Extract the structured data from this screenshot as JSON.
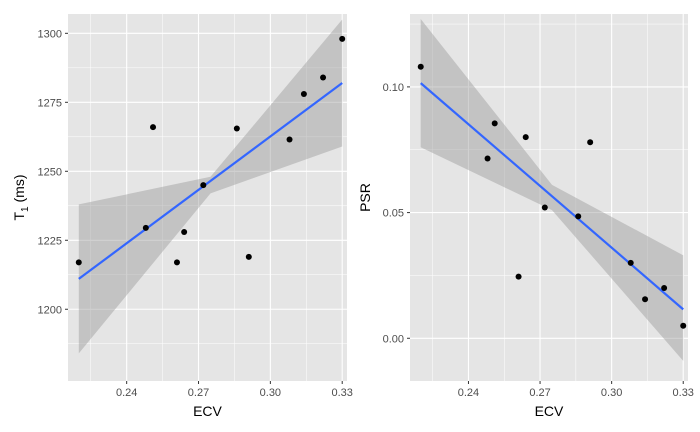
{
  "chart_data": [
    {
      "type": "scatter",
      "xlabel": "ECV",
      "ylabel": {
        "main": "T",
        "sub": "1",
        "tail": " (ms)"
      },
      "xlim": [
        0.2155,
        0.332
      ],
      "ylim": [
        1174,
        1307
      ],
      "x_ticks": [
        0.24,
        0.27,
        0.3,
        0.33
      ],
      "x_tick_labels": [
        "0.24",
        "0.27",
        "0.30",
        "0.33"
      ],
      "y_ticks": [
        1200,
        1225,
        1250,
        1275,
        1300
      ],
      "y_tick_labels": [
        "1200",
        "1225",
        "1250",
        "1275",
        "1300"
      ],
      "grid": true,
      "points": [
        {
          "x": 0.22,
          "y": 1217
        },
        {
          "x": 0.248,
          "y": 1229.5
        },
        {
          "x": 0.251,
          "y": 1266
        },
        {
          "x": 0.261,
          "y": 1217
        },
        {
          "x": 0.264,
          "y": 1228
        },
        {
          "x": 0.272,
          "y": 1245
        },
        {
          "x": 0.286,
          "y": 1265.5
        },
        {
          "x": 0.291,
          "y": 1219
        },
        {
          "x": 0.308,
          "y": 1261.5
        },
        {
          "x": 0.314,
          "y": 1278
        },
        {
          "x": 0.322,
          "y": 1284
        },
        {
          "x": 0.33,
          "y": 1298
        }
      ],
      "trend": {
        "x": [
          0.22,
          0.33
        ],
        "y": [
          1211,
          1282
        ]
      },
      "band": {
        "x": [
          0.22,
          0.275,
          0.33
        ],
        "lower": [
          1184,
          1242,
          1259
        ],
        "upper": [
          1238,
          1248,
          1305
        ]
      }
    },
    {
      "type": "scatter",
      "xlabel": "ECV",
      "ylabel": {
        "main": "PSR",
        "sub": "",
        "tail": ""
      },
      "xlim": [
        0.2155,
        0.332
      ],
      "ylim": [
        -0.017,
        0.129
      ],
      "x_ticks": [
        0.24,
        0.27,
        0.3,
        0.33
      ],
      "x_tick_labels": [
        "0.24",
        "0.27",
        "0.30",
        "0.33"
      ],
      "y_ticks": [
        0.0,
        0.05,
        0.1
      ],
      "y_tick_labels": [
        "0.00",
        "0.05",
        "0.10"
      ],
      "grid": true,
      "points": [
        {
          "x": 0.22,
          "y": 0.108
        },
        {
          "x": 0.248,
          "y": 0.0715
        },
        {
          "x": 0.251,
          "y": 0.0855
        },
        {
          "x": 0.261,
          "y": 0.0245
        },
        {
          "x": 0.264,
          "y": 0.08
        },
        {
          "x": 0.272,
          "y": 0.052
        },
        {
          "x": 0.286,
          "y": 0.0485
        },
        {
          "x": 0.291,
          "y": 0.078
        },
        {
          "x": 0.308,
          "y": 0.03
        },
        {
          "x": 0.314,
          "y": 0.0155
        },
        {
          "x": 0.322,
          "y": 0.02
        },
        {
          "x": 0.33,
          "y": 0.005
        }
      ],
      "trend": {
        "x": [
          0.22,
          0.33
        ],
        "y": [
          0.1015,
          0.0115
        ]
      },
      "band": {
        "x": [
          0.22,
          0.275,
          0.33
        ],
        "lower": [
          0.076,
          0.051,
          -0.009
        ],
        "upper": [
          0.127,
          0.061,
          0.033
        ]
      }
    }
  ],
  "colors": {
    "panel_background": "#e5e5e5",
    "grid": "#ffffff",
    "point": "#000000",
    "trend": "#3366ff",
    "band": "#999999"
  }
}
